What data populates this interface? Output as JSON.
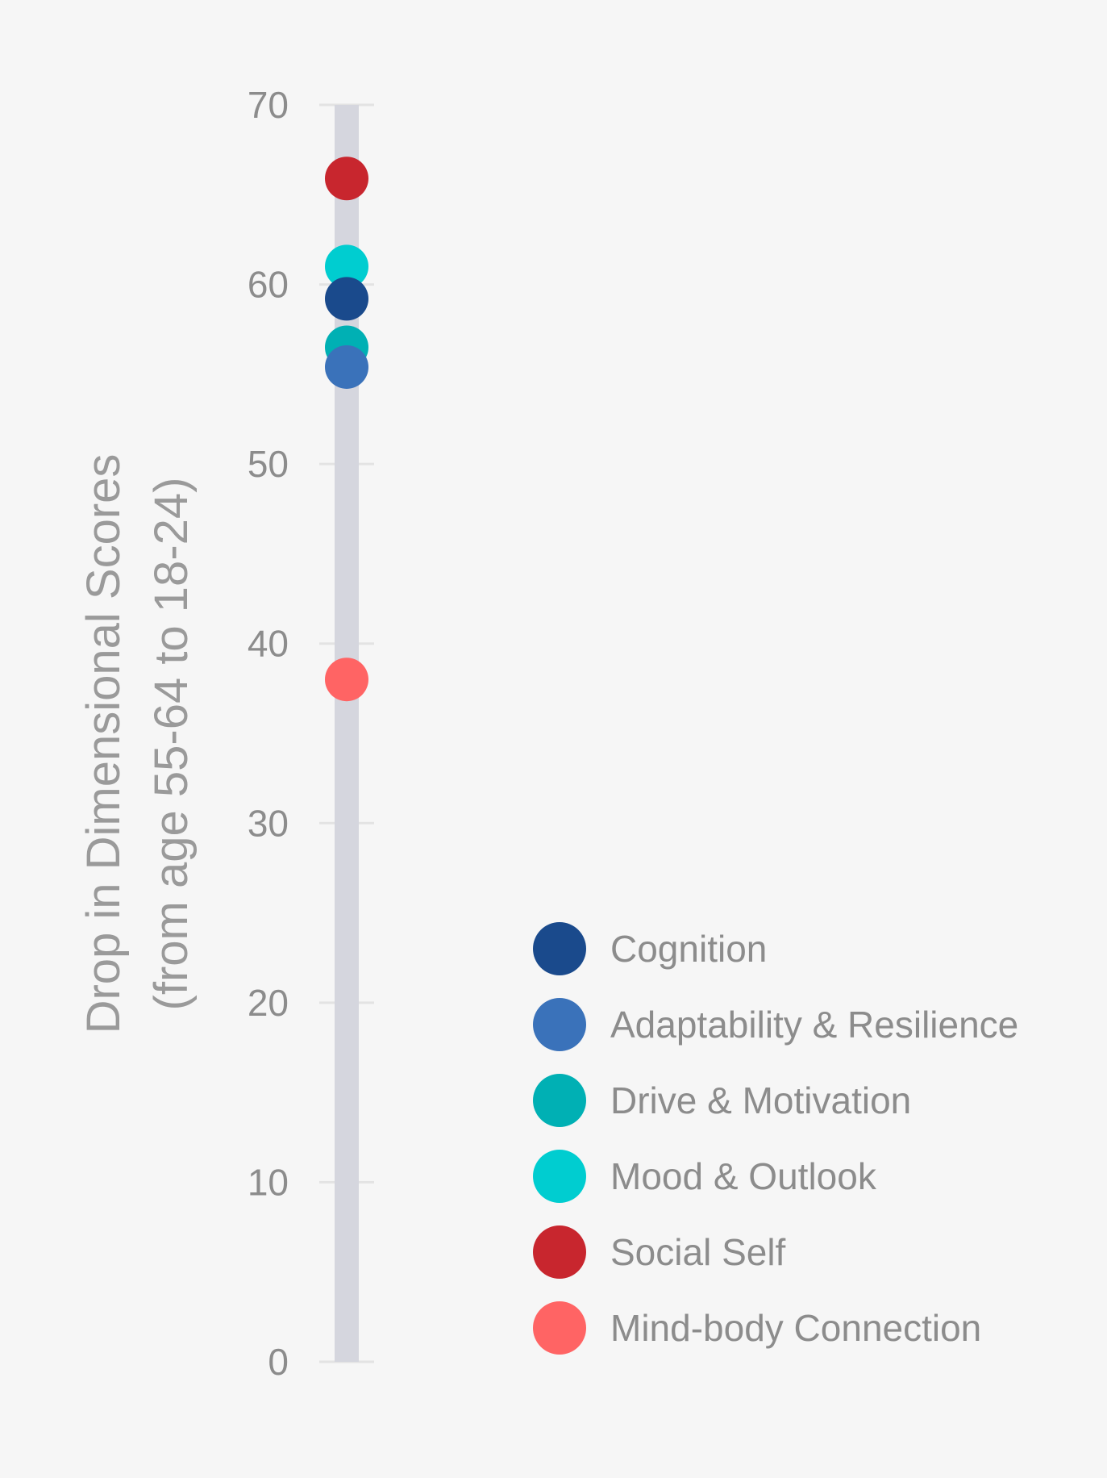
{
  "chart_data": {
    "type": "scatter",
    "title": "",
    "ylabel": "Drop in Dimensional Scores",
    "ylabel_line2": "(from age 55-64 to 18-24)",
    "xlabel": "",
    "ylim": [
      0,
      70
    ],
    "yticks": [
      0,
      10,
      20,
      30,
      40,
      50,
      60,
      70
    ],
    "ytick_labels": [
      "0",
      "10",
      "20",
      "30",
      "40",
      "50",
      "60",
      "70"
    ],
    "legend_position": "bottom-right",
    "series": [
      {
        "name": "Cognition",
        "value": 59.2,
        "color": "#1a4a8c"
      },
      {
        "name": "Adaptability & Resilience",
        "value": 55.4,
        "color": "#3a72ba"
      },
      {
        "name": "Drive & Motivation",
        "value": 56.5,
        "color": "#00b0b4"
      },
      {
        "name": "Mood & Outlook",
        "value": 61.0,
        "color": "#00cdd0"
      },
      {
        "name": "Social Self",
        "value": 65.9,
        "color": "#c8262e"
      },
      {
        "name": "Mind-body Connection",
        "value": 38.0,
        "color": "#ff6464"
      }
    ],
    "draw_order": [
      4,
      3,
      0,
      2,
      1,
      5
    ],
    "colors": {
      "background": "#f6f6f6",
      "track": "#d5d6de",
      "grid": "#e3e3e3",
      "text": "#8c8c8c"
    }
  }
}
